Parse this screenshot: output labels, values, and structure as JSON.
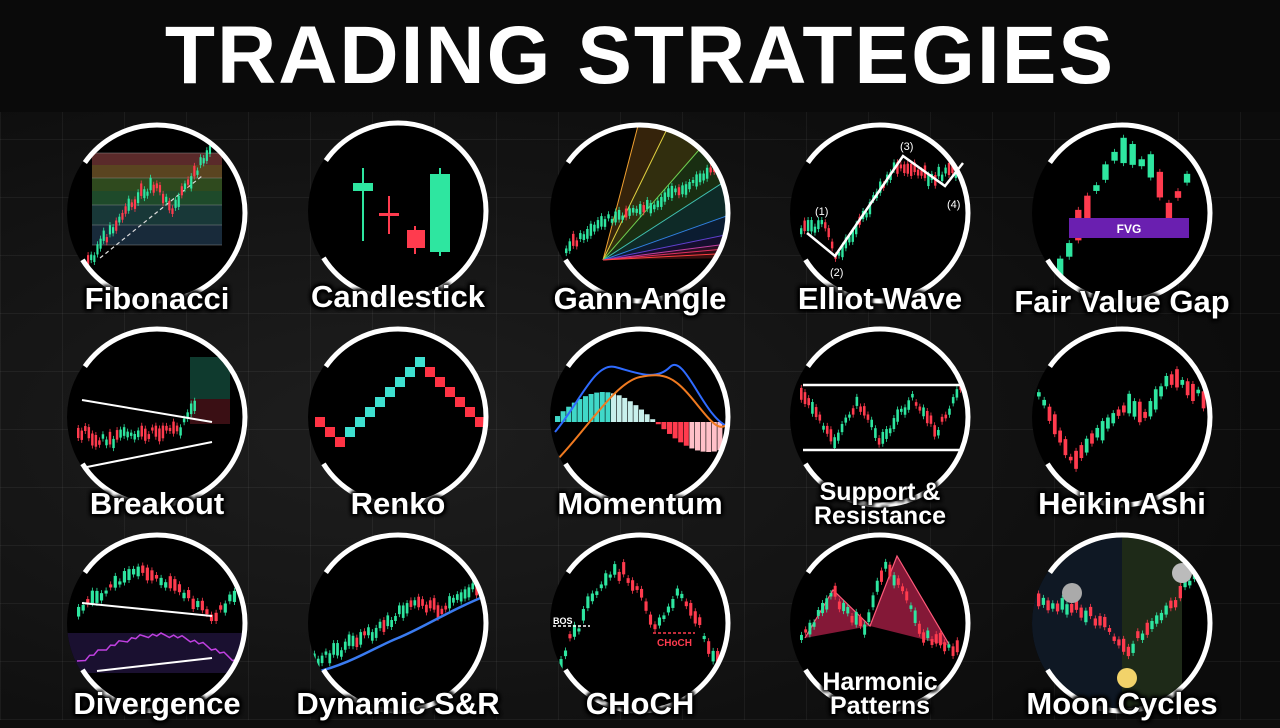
{
  "header": {
    "title": "TRADING STRATEGIES"
  },
  "colors": {
    "bull": "#2ee6a0",
    "bear": "#ff3b4e",
    "ring": "#ffffff",
    "renko_up": "#3ee0d0",
    "renko_down": "#ff3344",
    "fvg": "#6a1fb0"
  },
  "tiles": [
    {
      "label": "Fibonacci",
      "icon": "fibonacci-chart"
    },
    {
      "label": "Candlestick",
      "icon": "candlestick-chart"
    },
    {
      "label": "Gann Angle",
      "icon": "gann-fan-chart"
    },
    {
      "label": "Elliot Wave",
      "icon": "elliott-wave-chart",
      "waves": [
        "(1)",
        "(2)",
        "(3)",
        "(4)"
      ]
    },
    {
      "label": "Fair Value Gap",
      "icon": "fvg-chart",
      "tag": "FVG"
    },
    {
      "label": "Breakout",
      "icon": "breakout-chart"
    },
    {
      "label": "Renko",
      "icon": "renko-chart"
    },
    {
      "label": "Momentum",
      "icon": "macd-chart"
    },
    {
      "label": "Support & Resistance",
      "line1": "Support &",
      "line2": "Resistance",
      "icon": "support-resistance-chart"
    },
    {
      "label": "Heikin Ashi",
      "icon": "heikin-ashi-chart"
    },
    {
      "label": "Divergence",
      "icon": "divergence-chart"
    },
    {
      "label": "Dynamic S&R",
      "icon": "moving-average-chart"
    },
    {
      "label": "CHoCH",
      "icon": "choch-chart",
      "bos": "BOS",
      "choch": "CHoCH"
    },
    {
      "label": "Harmonic Patterns",
      "line1": "Harmonic",
      "line2": "Patterns",
      "icon": "harmonic-pattern-chart"
    },
    {
      "label": "Moon Cycles",
      "icon": "moon-cycle-chart"
    }
  ]
}
